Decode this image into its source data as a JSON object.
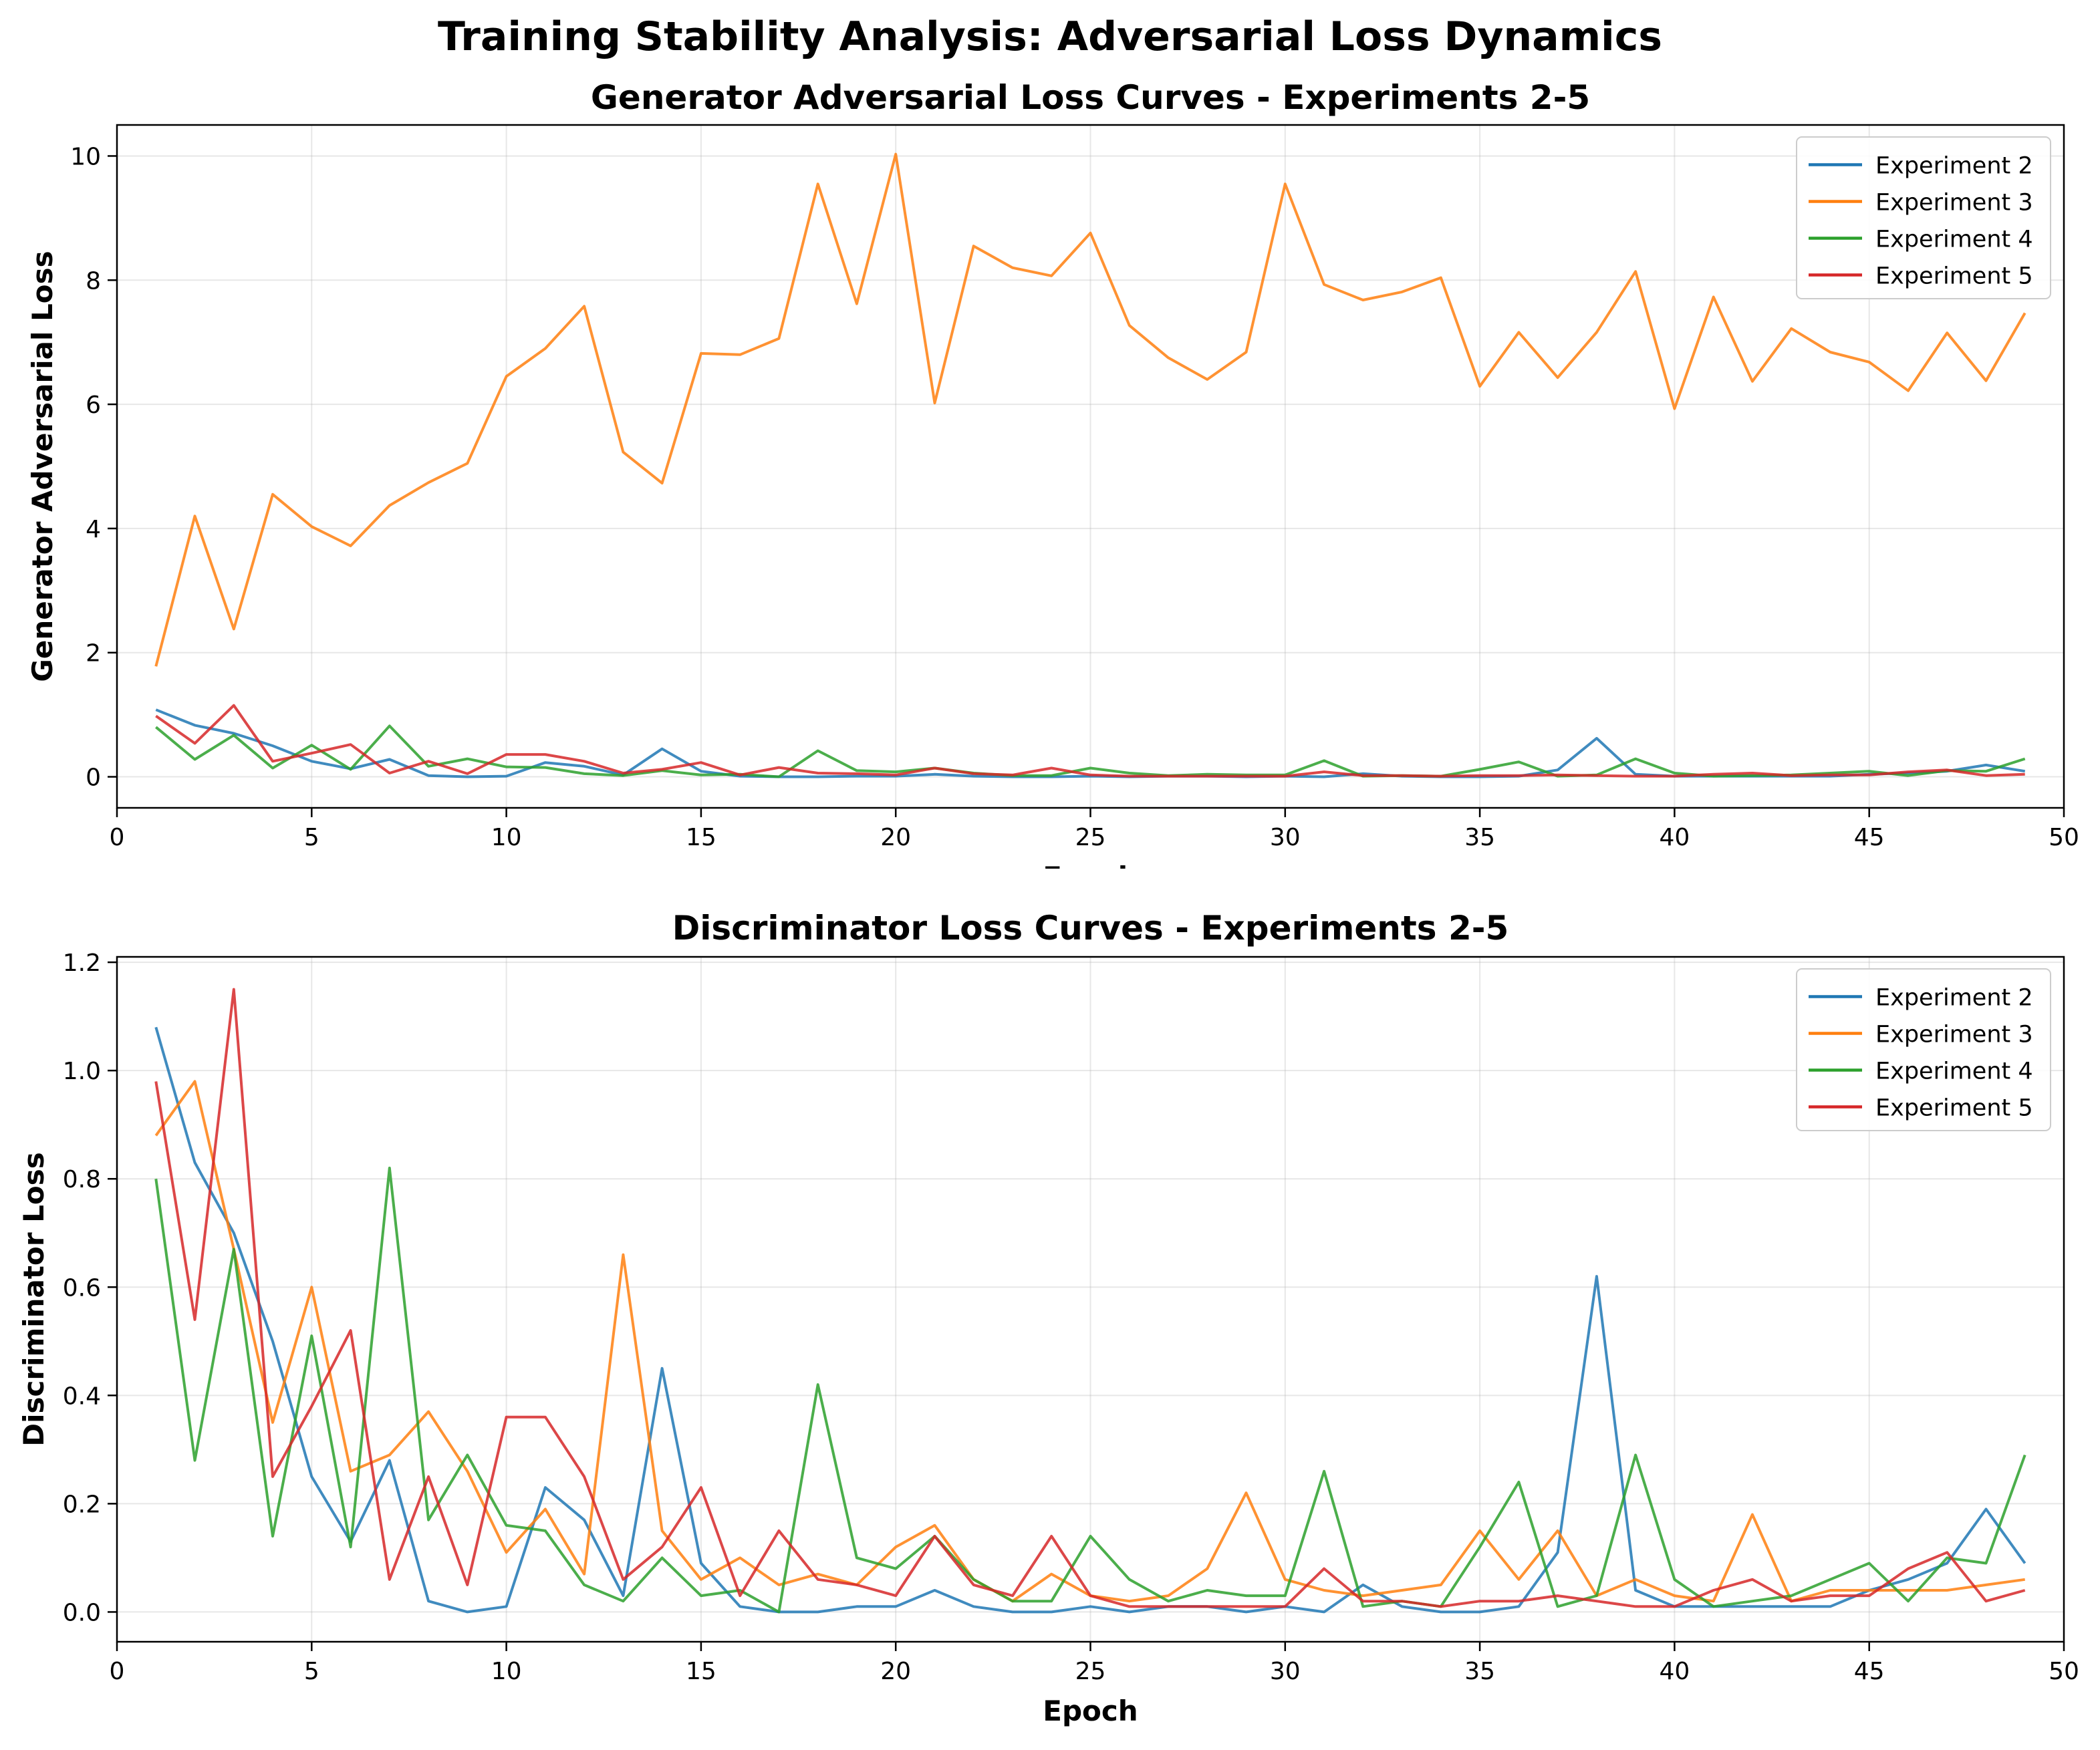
{
  "figure": {
    "suptitle": "Training Stability Analysis: Adversarial Loss Dynamics"
  },
  "colors": {
    "exp2": "#1f77b4",
    "exp3": "#ff7f0e",
    "exp4": "#2ca02c",
    "exp5": "#d62728",
    "grid": "#b0b0b0"
  },
  "chart_data": [
    {
      "type": "line",
      "title": "Generator Adversarial Loss Curves - Experiments 2-5",
      "xlabel": "Epoch",
      "ylabel": "Generator Adversarial Loss",
      "xlim": [
        0,
        50
      ],
      "ylim": [
        -0.5,
        10.5
      ],
      "xticks": [
        0,
        5,
        10,
        15,
        20,
        25,
        30,
        35,
        40,
        45,
        50
      ],
      "yticks": [
        0,
        2,
        4,
        6,
        8,
        10
      ],
      "grid": true,
      "legend": "top-right",
      "x": [
        1,
        2,
        3,
        4,
        5,
        6,
        7,
        8,
        9,
        10,
        11,
        12,
        13,
        14,
        15,
        16,
        17,
        18,
        19,
        20,
        21,
        22,
        23,
        24,
        25,
        26,
        27,
        28,
        29,
        30,
        31,
        32,
        33,
        34,
        35,
        36,
        37,
        38,
        39,
        40,
        41,
        42,
        43,
        44,
        45,
        46,
        47,
        48,
        49
      ],
      "series": [
        {
          "name": "Experiment 2",
          "color": "#1f77b4",
          "values": [
            1.08,
            0.83,
            0.7,
            0.5,
            0.25,
            0.13,
            0.28,
            0.02,
            0.0,
            0.01,
            0.23,
            0.17,
            0.03,
            0.45,
            0.09,
            0.01,
            0.0,
            0.0,
            0.01,
            0.01,
            0.04,
            0.01,
            0.0,
            0.0,
            0.01,
            0.0,
            0.01,
            0.01,
            0.0,
            0.01,
            0.0,
            0.05,
            0.01,
            0.0,
            0.0,
            0.01,
            0.11,
            0.62,
            0.04,
            0.01,
            0.01,
            0.01,
            0.01,
            0.01,
            0.04,
            0.06,
            0.09,
            0.19,
            0.09
          ]
        },
        {
          "name": "Experiment 3",
          "color": "#ff7f0e",
          "values": [
            1.78,
            4.2,
            2.38,
            4.55,
            4.03,
            3.72,
            4.37,
            4.74,
            5.05,
            6.45,
            6.9,
            7.58,
            5.23,
            4.73,
            6.82,
            6.8,
            7.06,
            9.55,
            7.62,
            10.03,
            6.02,
            8.55,
            8.2,
            8.07,
            8.76,
            7.27,
            6.75,
            6.4,
            6.84,
            9.55,
            7.93,
            7.68,
            7.81,
            8.04,
            6.29,
            7.16,
            6.43,
            7.16,
            8.14,
            5.93,
            7.73,
            6.37,
            7.22,
            6.84,
            6.68,
            6.22,
            7.15,
            6.38,
            7.47
          ]
        },
        {
          "name": "Experiment 4",
          "color": "#2ca02c",
          "values": [
            0.8,
            0.28,
            0.67,
            0.14,
            0.51,
            0.12,
            0.82,
            0.17,
            0.29,
            0.16,
            0.15,
            0.05,
            0.02,
            0.1,
            0.03,
            0.04,
            0.0,
            0.42,
            0.1,
            0.08,
            0.14,
            0.06,
            0.02,
            0.02,
            0.14,
            0.06,
            0.02,
            0.04,
            0.03,
            0.03,
            0.26,
            0.01,
            0.02,
            0.01,
            0.12,
            0.24,
            0.01,
            0.03,
            0.29,
            0.06,
            0.01,
            0.02,
            0.03,
            0.06,
            0.09,
            0.02,
            0.1,
            0.09,
            0.29
          ]
        },
        {
          "name": "Experiment 5",
          "color": "#d62728",
          "values": [
            0.98,
            0.54,
            1.15,
            0.25,
            0.38,
            0.52,
            0.06,
            0.25,
            0.05,
            0.36,
            0.36,
            0.25,
            0.06,
            0.12,
            0.23,
            0.03,
            0.15,
            0.06,
            0.05,
            0.03,
            0.14,
            0.05,
            0.03,
            0.14,
            0.03,
            0.01,
            0.01,
            0.01,
            0.01,
            0.01,
            0.08,
            0.02,
            0.02,
            0.01,
            0.02,
            0.02,
            0.03,
            0.02,
            0.01,
            0.01,
            0.04,
            0.06,
            0.02,
            0.03,
            0.03,
            0.08,
            0.11,
            0.02,
            0.04
          ]
        }
      ]
    },
    {
      "type": "line",
      "title": "Discriminator Loss Curves - Experiments 2-5",
      "xlabel": "Epoch",
      "ylabel": "Discriminator Loss",
      "xlim": [
        0,
        50
      ],
      "ylim": [
        -0.055,
        1.21
      ],
      "xticks": [
        0,
        5,
        10,
        15,
        20,
        25,
        30,
        35,
        40,
        45,
        50
      ],
      "yticks": [
        0.0,
        0.2,
        0.4,
        0.6,
        0.8,
        1.0,
        1.2
      ],
      "grid": true,
      "legend": "top-right",
      "x": [
        1,
        2,
        3,
        4,
        5,
        6,
        7,
        8,
        9,
        10,
        11,
        12,
        13,
        14,
        15,
        16,
        17,
        18,
        19,
        20,
        21,
        22,
        23,
        24,
        25,
        26,
        27,
        28,
        29,
        30,
        31,
        32,
        33,
        34,
        35,
        36,
        37,
        38,
        39,
        40,
        41,
        42,
        43,
        44,
        45,
        46,
        47,
        48,
        49
      ],
      "series": [
        {
          "name": "Experiment 2",
          "color": "#1f77b4",
          "values": [
            1.08,
            0.83,
            0.7,
            0.5,
            0.25,
            0.13,
            0.28,
            0.02,
            0.0,
            0.01,
            0.23,
            0.17,
            0.03,
            0.45,
            0.09,
            0.01,
            0.0,
            0.0,
            0.01,
            0.01,
            0.04,
            0.01,
            0.0,
            0.0,
            0.01,
            0.0,
            0.01,
            0.01,
            0.0,
            0.01,
            0.0,
            0.05,
            0.01,
            0.0,
            0.0,
            0.01,
            0.11,
            0.62,
            0.04,
            0.01,
            0.01,
            0.01,
            0.01,
            0.01,
            0.04,
            0.06,
            0.09,
            0.19,
            0.09
          ]
        },
        {
          "name": "Experiment 3",
          "color": "#ff7f0e",
          "values": [
            0.88,
            0.98,
            0.67,
            0.35,
            0.6,
            0.26,
            0.29,
            0.37,
            0.26,
            0.11,
            0.19,
            0.07,
            0.66,
            0.15,
            0.06,
            0.1,
            0.05,
            0.07,
            0.05,
            0.12,
            0.16,
            0.06,
            0.02,
            0.07,
            0.03,
            0.02,
            0.03,
            0.08,
            0.22,
            0.06,
            0.04,
            0.03,
            0.04,
            0.05,
            0.15,
            0.06,
            0.15,
            0.03,
            0.06,
            0.03,
            0.02,
            0.18,
            0.02,
            0.04,
            0.04,
            0.04,
            0.04,
            0.05,
            0.06
          ]
        },
        {
          "name": "Experiment 4",
          "color": "#2ca02c",
          "values": [
            0.8,
            0.28,
            0.67,
            0.14,
            0.51,
            0.12,
            0.82,
            0.17,
            0.29,
            0.16,
            0.15,
            0.05,
            0.02,
            0.1,
            0.03,
            0.04,
            0.0,
            0.42,
            0.1,
            0.08,
            0.14,
            0.06,
            0.02,
            0.02,
            0.14,
            0.06,
            0.02,
            0.04,
            0.03,
            0.03,
            0.26,
            0.01,
            0.02,
            0.01,
            0.12,
            0.24,
            0.01,
            0.03,
            0.29,
            0.06,
            0.01,
            0.02,
            0.03,
            0.06,
            0.09,
            0.02,
            0.1,
            0.09,
            0.29
          ]
        },
        {
          "name": "Experiment 5",
          "color": "#d62728",
          "values": [
            0.98,
            0.54,
            1.15,
            0.25,
            0.38,
            0.52,
            0.06,
            0.25,
            0.05,
            0.36,
            0.36,
            0.25,
            0.06,
            0.12,
            0.23,
            0.03,
            0.15,
            0.06,
            0.05,
            0.03,
            0.14,
            0.05,
            0.03,
            0.14,
            0.03,
            0.01,
            0.01,
            0.01,
            0.01,
            0.01,
            0.08,
            0.02,
            0.02,
            0.01,
            0.02,
            0.02,
            0.03,
            0.02,
            0.01,
            0.01,
            0.04,
            0.06,
            0.02,
            0.03,
            0.03,
            0.08,
            0.11,
            0.02,
            0.04
          ]
        }
      ]
    }
  ]
}
